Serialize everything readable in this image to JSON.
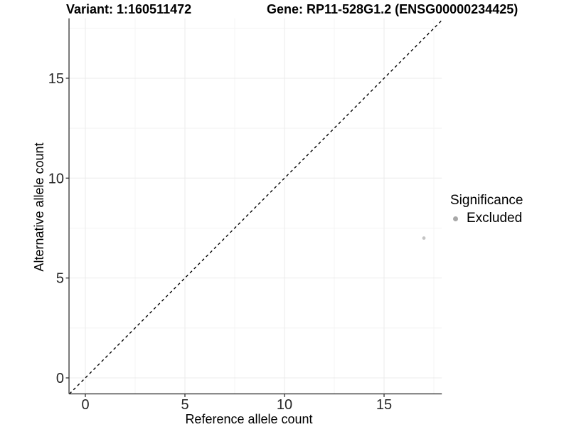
{
  "header": {
    "variant_title": "Variant: 1:160511472",
    "gene_title": "Gene: RP11-528G1.2 (ENSG00000234425)"
  },
  "chart_data": {
    "type": "scatter",
    "xlabel": "Reference allele count",
    "ylabel": "Alternative allele count",
    "xlim": [
      -0.82,
      17.9
    ],
    "ylim": [
      -0.8,
      18.0
    ],
    "x_ticks": [
      0,
      5,
      10,
      15
    ],
    "y_ticks": [
      0,
      5,
      10,
      15
    ],
    "x_minor_ticks": [
      2.5,
      7.5,
      12.5,
      17.5
    ],
    "y_minor_ticks": [
      2.5,
      7.5,
      12.5,
      17.5
    ],
    "grid": true,
    "identity_line": {
      "style": "dashed",
      "from": -0.8,
      "to": 17.9
    },
    "points": [
      {
        "x": 17,
        "y": 7,
        "series": "Excluded"
      }
    ],
    "series_colors": {
      "Excluded": "#c4c4c4"
    },
    "colors": {
      "grid_minor": "#f4f4f4",
      "grid_major": "#ebebeb",
      "axis": "#333333",
      "tick_label": "#262626",
      "identity_line": "#000000"
    },
    "legend": {
      "title": "Significance",
      "position": "right",
      "items": [
        {
          "label": "Excluded",
          "color": "#a8a8a8"
        }
      ]
    }
  }
}
